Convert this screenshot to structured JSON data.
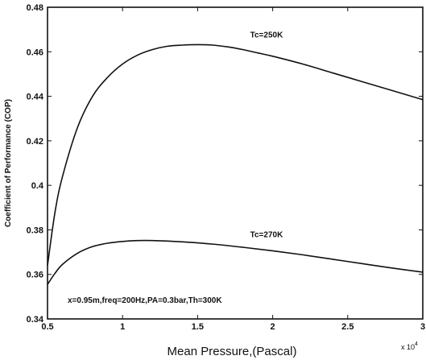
{
  "chart_data": {
    "type": "line",
    "xlabel": "Mean Pressure,(Pascal)",
    "ylabel": "Coefficient of Performance (COP)",
    "x_multiplier": "x 10",
    "x_multiplier_exp": "4",
    "xlim": [
      0.5,
      3
    ],
    "ylim": [
      0.34,
      0.48
    ],
    "x_ticks": [
      "0.5",
      "1",
      "1.5",
      "2",
      "2.5",
      "3"
    ],
    "y_ticks": [
      "0.34",
      "0.36",
      "0.38",
      "0.4",
      "0.42",
      "0.44",
      "0.46",
      "0.48"
    ],
    "grid": false,
    "legend": "none",
    "annotation": "x=0.95m,freq=200Hz,PA=0.3bar,Th=300K",
    "series": [
      {
        "name": "Tc=250K",
        "x": [
          0.5,
          0.55,
          0.6,
          0.7,
          0.8,
          0.9,
          1.0,
          1.1,
          1.2,
          1.3,
          1.4,
          1.5,
          1.6,
          1.7,
          1.8,
          1.9,
          2.0,
          2.2,
          2.4,
          2.6,
          2.8,
          3.0
        ],
        "y": [
          0.364,
          0.388,
          0.404,
          0.426,
          0.44,
          0.4485,
          0.4545,
          0.4585,
          0.461,
          0.4625,
          0.463,
          0.4632,
          0.463,
          0.4622,
          0.461,
          0.4595,
          0.458,
          0.4545,
          0.4505,
          0.4465,
          0.4425,
          0.4385
        ]
      },
      {
        "name": "Tc=270K",
        "x": [
          0.5,
          0.55,
          0.6,
          0.7,
          0.8,
          0.9,
          1.0,
          1.1,
          1.2,
          1.4,
          1.6,
          1.8,
          2.0,
          2.2,
          2.4,
          2.6,
          2.8,
          3.0
        ],
        "y": [
          0.3555,
          0.3605,
          0.3645,
          0.3695,
          0.3725,
          0.374,
          0.3748,
          0.3752,
          0.3752,
          0.3746,
          0.3736,
          0.3722,
          0.3706,
          0.3688,
          0.3668,
          0.3648,
          0.3628,
          0.361
        ]
      }
    ],
    "series_label_pos": [
      {
        "x": 1.85,
        "y": 0.4665
      },
      {
        "x": 1.85,
        "y": 0.3768
      }
    ]
  }
}
